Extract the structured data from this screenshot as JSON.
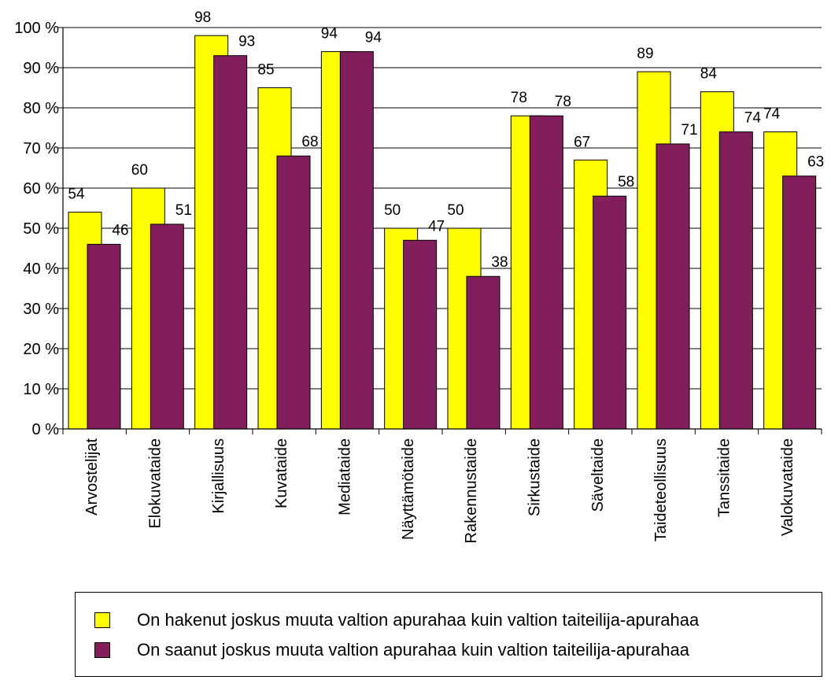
{
  "chart_data": {
    "type": "bar",
    "categories": [
      "Arvostelijat",
      "Elokuvataide",
      "Kirjallisuus",
      "Kuvataide",
      "Mediataide",
      "Näyttämötaide",
      "Rakennustaide",
      "Sirkustaide",
      "Säveltaide",
      "Taideteollisuus",
      "Tanssitaide",
      "Valokuvataide"
    ],
    "series": [
      {
        "name": "On hakenut joskus muuta valtion apurahaa kuin valtion taiteilija-apurahaa",
        "color": "#ffff00",
        "values": [
          54,
          60,
          98,
          85,
          94,
          50,
          50,
          78,
          67,
          89,
          84,
          74
        ],
        "labels": [
          "54",
          "60",
          "98",
          "85",
          "94",
          "50",
          "50",
          "78",
          "67",
          "89",
          "84",
          "74"
        ]
      },
      {
        "name": "On saanut joskus muuta valtion apurahaa kuin valtion taiteilija-apurahaa",
        "color": "#821e5c",
        "values": [
          46,
          51,
          93,
          68,
          94,
          47,
          38,
          78,
          58,
          71,
          74,
          63
        ],
        "labels": [
          "46",
          "51",
          "93",
          "68",
          "94",
          "47",
          "38",
          "78",
          "58",
          "71",
          "74",
          "63"
        ]
      }
    ],
    "y_ticks": [
      "0 %",
      "10 %",
      "20 %",
      "30 %",
      "40 %",
      "50 %",
      "60 %",
      "70 %",
      "80 %",
      "90 %",
      "100 %"
    ],
    "ylim": [
      0,
      100
    ],
    "grid": true,
    "legend": "bottom",
    "title": "",
    "xlabel": "",
    "ylabel": ""
  }
}
